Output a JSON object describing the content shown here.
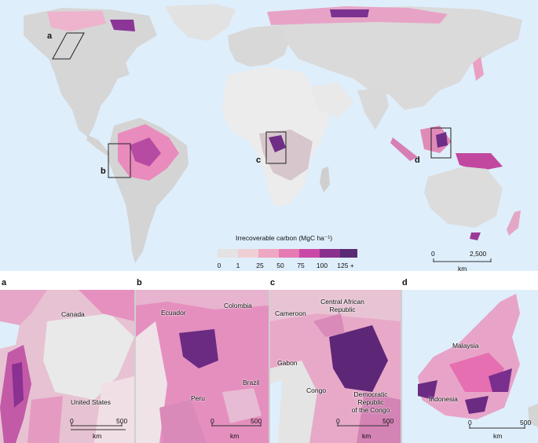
{
  "world": {
    "box_labels": [
      "a",
      "b",
      "c",
      "d"
    ],
    "scale": {
      "min_label": "0",
      "max_label": "2,500",
      "unit": "km"
    }
  },
  "legend": {
    "title": "Irrecoverable carbon (MgC ha⁻¹)",
    "ticks": [
      "0",
      "1",
      "25",
      "50",
      "75",
      "100",
      "125 +"
    ],
    "colors": [
      "#e3e3e3",
      "#efcfd6",
      "#f0a7c3",
      "#e67ab3",
      "#c94aa6",
      "#8a2f8e",
      "#5a2a73"
    ]
  },
  "insets": [
    {
      "letter": "a",
      "places": [
        "Canada",
        "United States"
      ],
      "scale": {
        "min_label": "0",
        "max_label": "500",
        "unit": "km"
      }
    },
    {
      "letter": "b",
      "places": [
        "Ecuador",
        "Colombia",
        "Peru",
        "Brazil"
      ],
      "scale": {
        "min_label": "0",
        "max_label": "500",
        "unit": "km"
      }
    },
    {
      "letter": "c",
      "places": [
        "Cameroon",
        "Central African\nRepublic",
        "Gabon",
        "Congo",
        "Democratic\nRepublic\nof the Congo"
      ],
      "scale": {
        "min_label": "0",
        "max_label": "500",
        "unit": "km"
      }
    },
    {
      "letter": "d",
      "places": [
        "Malaysia",
        "Indonesia"
      ],
      "scale": {
        "min_label": "0",
        "max_label": "500",
        "unit": "km"
      }
    }
  ],
  "colors": {
    "ocean": "#dfeefb",
    "land": "#d6d6d6",
    "lake": "#d2e6f6"
  }
}
